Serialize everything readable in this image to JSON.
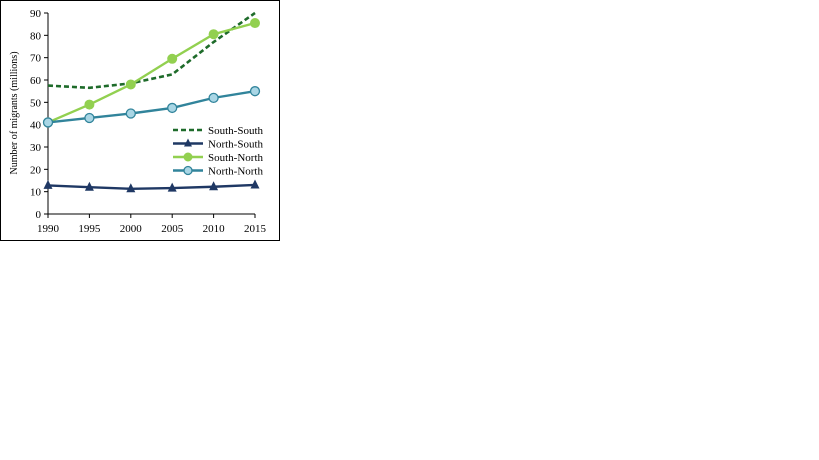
{
  "chart_data": {
    "type": "line",
    "ylabel": "Number of migrants (millions)",
    "xlabel": "",
    "x": [
      1990,
      1995,
      2000,
      2005,
      2010,
      2015
    ],
    "ylim": [
      0,
      90
    ],
    "yticks": [
      0,
      10,
      20,
      30,
      40,
      50,
      60,
      70,
      80,
      90
    ],
    "grid": false,
    "legend_position": "right",
    "series": [
      {
        "name": "South-South",
        "values": [
          57.5,
          56.5,
          58.5,
          62.5,
          77,
          90
        ],
        "color": "#1e6b2a",
        "style": "dashed",
        "marker": "none"
      },
      {
        "name": "North-South",
        "values": [
          12.8,
          12,
          11.3,
          11.6,
          12.2,
          13
        ],
        "color": "#1f3864",
        "style": "solid",
        "marker": "triangle"
      },
      {
        "name": "South-North",
        "values": [
          41,
          49,
          58,
          69.5,
          80.5,
          85.5
        ],
        "color": "#92d050",
        "style": "solid",
        "marker": "circle"
      },
      {
        "name": "North-North",
        "values": [
          41,
          43,
          45,
          47.5,
          52,
          55
        ],
        "color": "#31849b",
        "style": "solid",
        "marker": "circle-light"
      }
    ]
  }
}
